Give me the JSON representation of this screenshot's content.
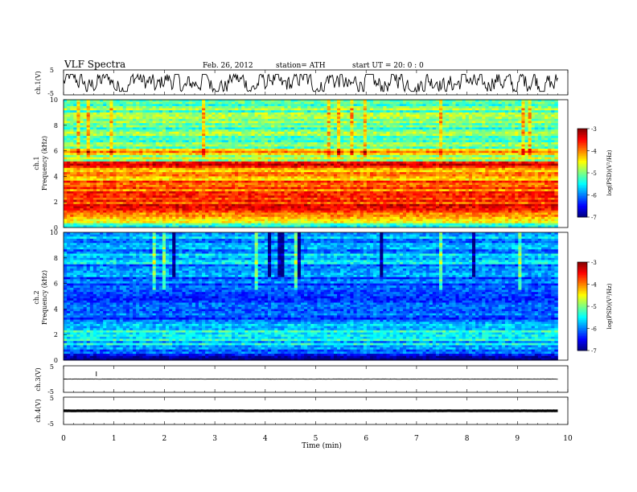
{
  "header": {
    "title": "VLF  Spectra",
    "date": "Feb. 26, 2012",
    "station": "station= ATH",
    "start": "start  UT  =    20: 0   : 0"
  },
  "chart_data": [
    {
      "type": "line",
      "panel": "ch1",
      "ylabel": "ch.1(V)",
      "ylim": [
        -5,
        5
      ],
      "y_ticks": [
        "5",
        "-5"
      ],
      "xlim": [
        0,
        10
      ],
      "data_end_min": 9.8,
      "style": "noisy waveform, amplitude roughly -3.5 to 3 V",
      "color": "#000000"
    },
    {
      "type": "heatmap",
      "panel": "ch1_spectrogram",
      "ylabel_top": "ch.1",
      "ylabel": "Frequency  (kHz)",
      "ylim": [
        0,
        10
      ],
      "y_ticks": [
        "0",
        "2",
        "4",
        "6",
        "8",
        "10"
      ],
      "xlim": [
        0,
        10
      ],
      "data_end_min": 9.8,
      "colorbar": {
        "label": "log(PSD)(V²/Hz)",
        "range": [
          -7,
          -3
        ],
        "ticks": [
          "-3",
          "-4",
          "-5",
          "-6",
          "-7"
        ]
      },
      "band_levels": [
        {
          "f": [
            0.0,
            0.3
          ],
          "level": -5.2
        },
        {
          "f": [
            0.3,
            1.2
          ],
          "level": -4.3
        },
        {
          "f": [
            1.2,
            2.6
          ],
          "level": -3.6
        },
        {
          "f": [
            2.6,
            3.6
          ],
          "level": -3.8
        },
        {
          "f": [
            3.6,
            4.6
          ],
          "level": -4.1
        },
        {
          "f": [
            4.6,
            5.1
          ],
          "level": -3.3
        },
        {
          "f": [
            5.1,
            5.8
          ],
          "level": -4.7
        },
        {
          "f": [
            5.8,
            6.2
          ],
          "level": -4.2
        },
        {
          "f": [
            6.2,
            10.0
          ],
          "level": -5.1
        }
      ]
    },
    {
      "type": "heatmap",
      "panel": "ch2_spectrogram",
      "ylabel_top": "ch.2",
      "ylabel": "Frequency  (kHz)",
      "ylim": [
        0,
        10
      ],
      "y_ticks": [
        "0",
        "2",
        "4",
        "6",
        "8",
        "10"
      ],
      "xlim": [
        0,
        10
      ],
      "data_end_min": 9.8,
      "colorbar": {
        "label": "log(PSD)(V²/Hz)",
        "range": [
          -7,
          -3
        ],
        "ticks": [
          "-3",
          "-4",
          "-5",
          "-6",
          "-7"
        ]
      },
      "band_levels": [
        {
          "f": [
            0.0,
            0.3
          ],
          "level": -6.9
        },
        {
          "f": [
            0.3,
            0.8
          ],
          "level": -6.2
        },
        {
          "f": [
            0.8,
            3.0
          ],
          "level": -5.6
        },
        {
          "f": [
            3.0,
            5.0
          ],
          "level": -6.3
        },
        {
          "f": [
            5.0,
            7.5
          ],
          "level": -6.0
        },
        {
          "f": [
            7.5,
            10.0
          ],
          "level": -5.8
        }
      ]
    },
    {
      "type": "line",
      "panel": "ch3",
      "ylabel": "ch.3(V)",
      "ylim": [
        -5,
        5
      ],
      "y_ticks": [
        "5",
        "-5"
      ],
      "xlim": [
        0,
        10
      ],
      "data_end_min": 9.8,
      "style": "flat trace near 0 V",
      "color": "#000000"
    },
    {
      "type": "line",
      "panel": "ch4",
      "ylabel": "ch.4(V)",
      "ylim": [
        -5,
        5
      ],
      "y_ticks": [
        "5",
        "-5"
      ],
      "xlim": [
        0,
        10
      ],
      "data_end_min": 9.8,
      "style": "thick flat trace near 0 V",
      "color": "#000000"
    }
  ],
  "xaxis": {
    "label": "Time  (min)",
    "ticks": [
      "0",
      "1",
      "2",
      "3",
      "4",
      "5",
      "6",
      "7",
      "8",
      "9",
      "10"
    ]
  }
}
